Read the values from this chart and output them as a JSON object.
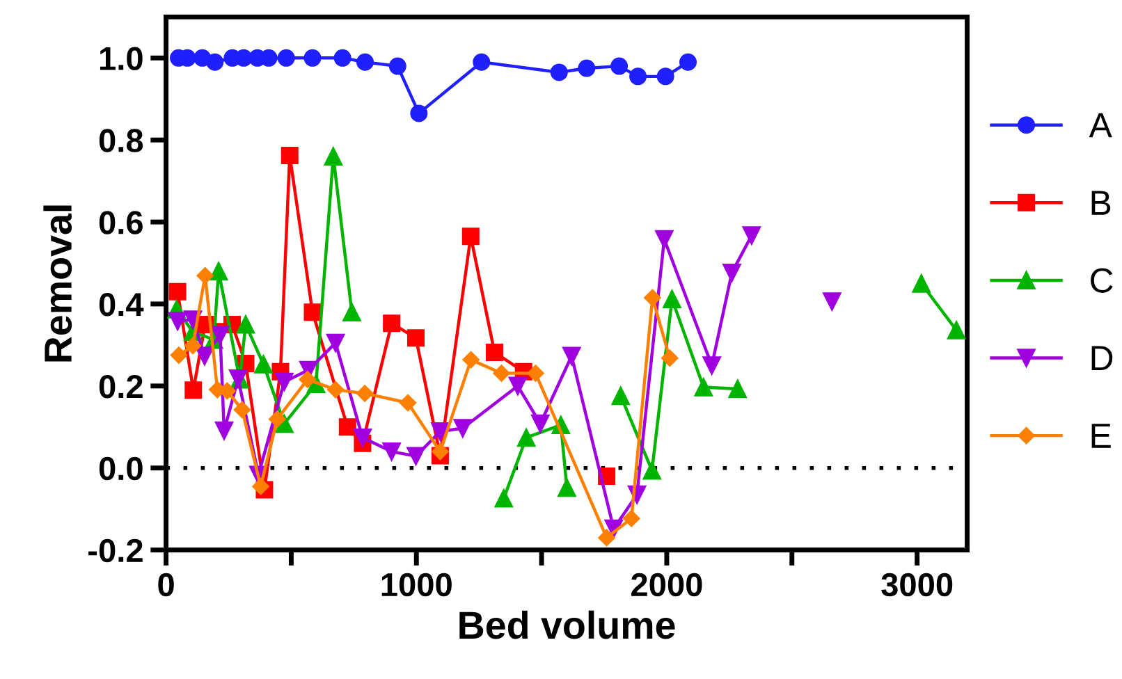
{
  "chart_data": {
    "type": "line",
    "xlabel": "Bed volume",
    "ylabel": "Removal",
    "xlim": [
      0,
      3200
    ],
    "xticks": [
      0,
      {
        "value": 500,
        "label": null
      },
      1000,
      {
        "value": 1500,
        "label": null
      },
      2000,
      {
        "value": 2500,
        "label": null
      },
      3000
    ],
    "ylim": [
      -0.2,
      1.1
    ],
    "yticks": [
      -0.2,
      {
        "value": 0,
        "label": "0.0"
      },
      0.2,
      0.4,
      0.6,
      0.8,
      {
        "value": 1,
        "label": "1.0"
      }
    ],
    "grid": false,
    "legend": "right",
    "line_style": "solid",
    "ref_lines": [
      {
        "axis": "y",
        "value": 0,
        "color": "#000000",
        "line_style": "dotted"
      }
    ],
    "series": [
      {
        "name": "A",
        "color": "#1f1fff",
        "marker": "circle",
        "x": [
          50,
          85,
          145,
          195,
          265,
          310,
          365,
          410,
          480,
          585,
          705,
          795,
          925,
          1010,
          1260,
          1570,
          1680,
          1810,
          1885,
          1995,
          2085
        ],
        "values": [
          1.0,
          1.0,
          1.0,
          0.99,
          1.0,
          1.0,
          1.0,
          1.0,
          1.0,
          1.0,
          1.0,
          0.99,
          0.98,
          0.865,
          0.99,
          0.965,
          0.975,
          0.98,
          0.955,
          0.955,
          0.99
        ]
      },
      {
        "name": "B",
        "color": "#ff0000",
        "marker": "square",
        "x": [
          46,
          109,
          156,
          264,
          318,
          393,
          457,
          494,
          585,
          725,
          785,
          901,
          998,
          1095,
          1217,
          1312,
          1428,
          null,
          1760
        ],
        "values": [
          0.43,
          0.19,
          0.35,
          0.35,
          0.255,
          -0.053,
          0.235,
          0.762,
          0.38,
          0.1,
          0.06,
          0.353,
          0.317,
          0.03,
          0.565,
          0.282,
          0.235,
          null,
          -0.02
        ]
      },
      {
        "name": "C",
        "color": "#00b400",
        "marker": "triangle",
        "x": [
          42,
          107,
          191,
          210,
          294,
          318,
          389,
          472,
          599,
          668,
          742,
          null,
          1349,
          1439,
          1577,
          1601,
          null,
          1816,
          1941,
          2021,
          2147,
          2283,
          null,
          3017,
          3157
        ],
        "values": [
          0.387,
          0.332,
          0.313,
          0.48,
          0.216,
          0.35,
          0.253,
          0.108,
          0.205,
          0.76,
          0.38,
          null,
          -0.074,
          0.074,
          0.105,
          -0.048,
          null,
          0.176,
          -0.006,
          0.412,
          0.197,
          0.193,
          null,
          0.45,
          0.336
        ]
      },
      {
        "name": "D",
        "color": "#a000e0",
        "marker": "triangle_down",
        "x": [
          46,
          107,
          154,
          216,
          232,
          288,
          369,
          472,
          569,
          677,
          785,
          901,
          998,
          1095,
          1185,
          1405,
          1495,
          1620,
          1788,
          1881,
          1990,
          2180,
          2260,
          2339,
          null,
          2660
        ],
        "values": [
          0.358,
          0.362,
          0.273,
          0.324,
          0.091,
          0.218,
          -0.017,
          0.21,
          0.239,
          0.305,
          0.074,
          0.04,
          0.029,
          0.089,
          0.097,
          0.2,
          0.108,
          0.273,
          -0.148,
          -0.065,
          0.558,
          0.25,
          0.476,
          0.567,
          null,
          0.406
        ]
      },
      {
        "name": "E",
        "color": "#ff8000",
        "marker": "diamond",
        "x": [
          51,
          107,
          156,
          205,
          244,
          304,
          378,
          444,
          565,
          677,
          794,
          966,
          1095,
          1218,
          1340,
          1476,
          1760,
          1859,
          1943,
          2012
        ],
        "values": [
          0.275,
          0.298,
          0.469,
          0.191,
          0.188,
          0.142,
          -0.045,
          0.119,
          0.216,
          0.191,
          0.182,
          0.159,
          0.04,
          0.264,
          0.231,
          0.231,
          -0.17,
          -0.123,
          0.415,
          0.268
        ]
      }
    ]
  }
}
